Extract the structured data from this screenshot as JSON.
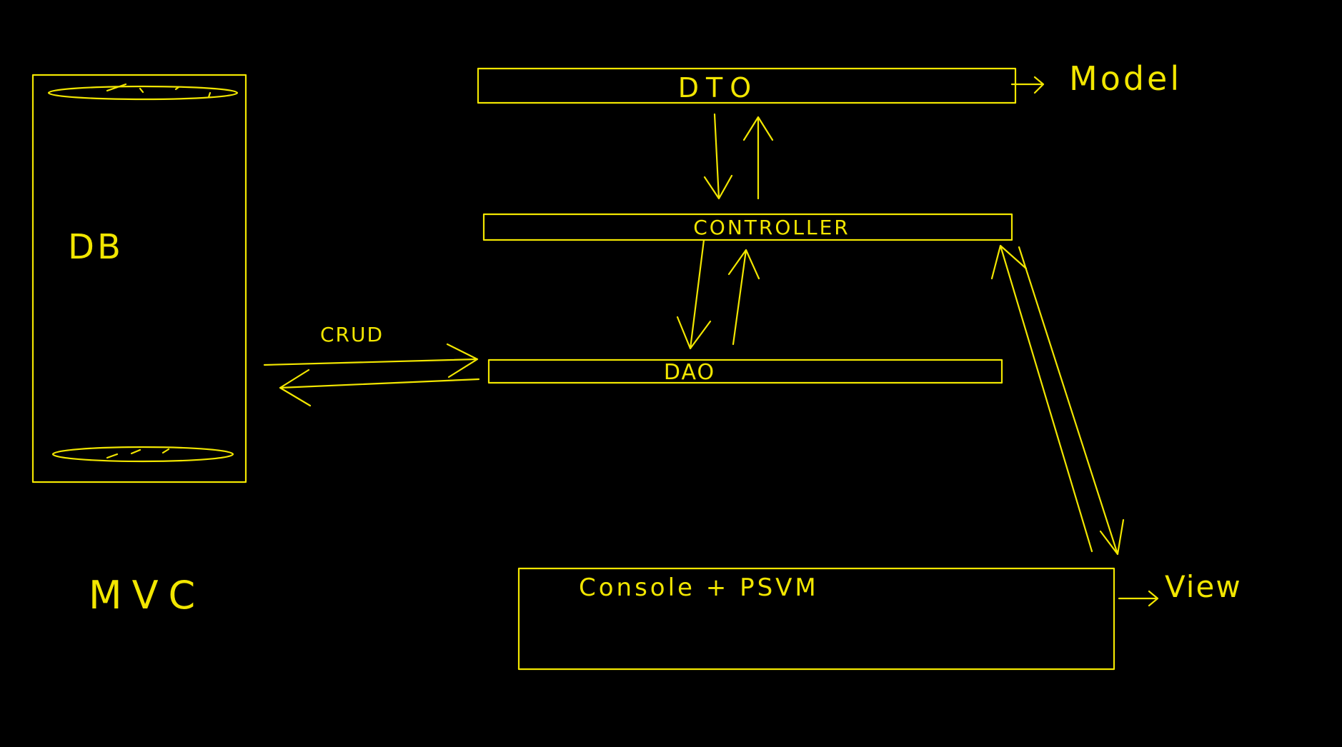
{
  "colors": {
    "background": "#000000",
    "ink": "#f2e600"
  },
  "layers": {
    "dto": "DTO",
    "controller": "CONTROLLER",
    "dao": "DAO",
    "view": "Console + PSVM"
  },
  "database": {
    "label": "DB"
  },
  "annotations": {
    "crud": "CRUD",
    "model": "Model",
    "view": "View",
    "pattern": "MVC"
  }
}
